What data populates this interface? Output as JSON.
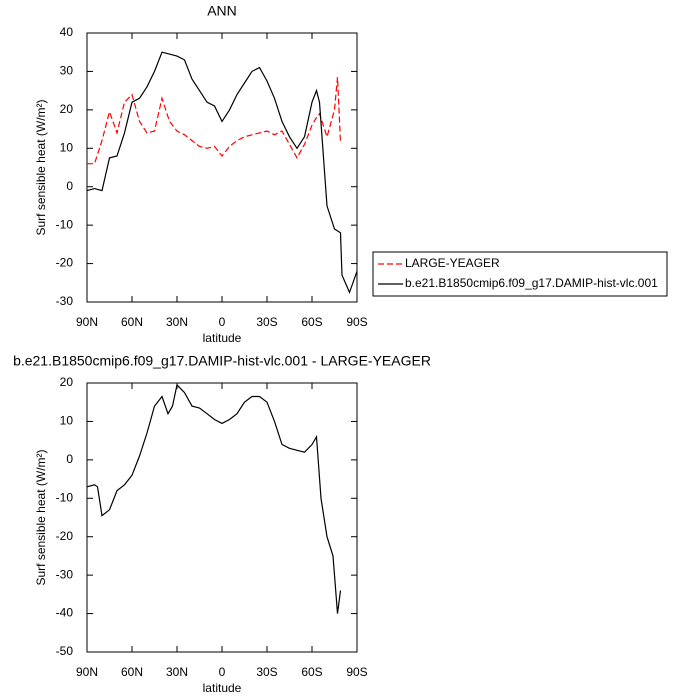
{
  "chart_data": [
    {
      "type": "line",
      "title": "ANN",
      "x_label": "latitude",
      "y_label": "Surf sensible heat (W/m²)",
      "x": [
        90,
        85,
        80,
        75,
        70,
        65,
        60,
        55,
        50,
        45,
        40,
        35,
        30,
        25,
        20,
        15,
        10,
        5,
        0,
        -5,
        -10,
        -15,
        -20,
        -25,
        -30,
        -35,
        -40,
        -45,
        -50,
        -55,
        -60,
        -63,
        -65,
        -70,
        -75,
        -77,
        -79,
        -80,
        -85,
        -90
      ],
      "xlim": [
        90,
        -90
      ],
      "xticks": [
        {
          "value": 90,
          "label": "90N"
        },
        {
          "value": 60,
          "label": "60N"
        },
        {
          "value": 30,
          "label": "30N"
        },
        0,
        {
          "value": -30,
          "label": "30S"
        },
        {
          "value": -60,
          "label": "60S"
        },
        {
          "value": -90,
          "label": "90S"
        }
      ],
      "ylim": [
        -30,
        40
      ],
      "yticks": [
        -30,
        -20,
        -10,
        0,
        10,
        20,
        30,
        40
      ],
      "series": [
        {
          "name": "LARGE-YEAGER",
          "color": "#ff0000",
          "dashed": true,
          "values": [
            6,
            6,
            12,
            19.5,
            14,
            22,
            24,
            17,
            14,
            14.5,
            23,
            17,
            14.5,
            13.5,
            12,
            10.5,
            10,
            10.5,
            8,
            10.5,
            12,
            13,
            13.5,
            14,
            14.5,
            13.5,
            14.5,
            11,
            7.5,
            11,
            16,
            18,
            19,
            13,
            20,
            28.5,
            11.5,
            null,
            null,
            null
          ]
        },
        {
          "name": "b.e21.B1850cmip6.f09_g17.DAMIP-hist-vlc.001",
          "color": "#000000",
          "dashed": false,
          "values": [
            -1,
            -0.5,
            -1,
            7.5,
            8,
            14,
            22,
            23,
            26,
            30,
            35,
            34.5,
            34,
            33,
            28,
            25,
            22,
            21,
            17,
            20,
            24,
            27,
            30,
            31,
            27.5,
            23,
            17,
            13,
            10,
            13,
            22,
            25,
            22,
            -5,
            -11,
            -11.5,
            -12,
            -23,
            -27.5,
            -22
          ]
        }
      ]
    },
    {
      "type": "line",
      "title": "b.e21.B1850cmip6.f09_g17.DAMIP-hist-vlc.001 - LARGE-YEAGER",
      "x_label": "latitude",
      "y_label": "Surf sensible heat (W/m²)",
      "x": [
        90,
        85,
        83,
        80,
        75,
        70,
        65,
        60,
        55,
        50,
        45,
        40,
        36,
        33,
        30,
        25,
        20,
        15,
        10,
        5,
        0,
        -5,
        -10,
        -15,
        -20,
        -25,
        -30,
        -35,
        -40,
        -45,
        -50,
        -55,
        -60,
        -63,
        -66,
        -70,
        -74,
        -77,
        -79
      ],
      "xlim": [
        90,
        -90
      ],
      "xticks": [
        {
          "value": 90,
          "label": "90N"
        },
        {
          "value": 60,
          "label": "60N"
        },
        {
          "value": 30,
          "label": "30N"
        },
        0,
        {
          "value": -30,
          "label": "30S"
        },
        {
          "value": -60,
          "label": "60S"
        },
        {
          "value": -90,
          "label": "90S"
        }
      ],
      "ylim": [
        -50,
        20
      ],
      "yticks": [
        -50,
        -40,
        -30,
        -20,
        -10,
        0,
        10,
        20
      ],
      "series": [
        {
          "color": "#000000",
          "dashed": false,
          "values": [
            -7,
            -6.5,
            -7,
            -14.5,
            -13,
            -8,
            -6.5,
            -4,
            1,
            7,
            14,
            16.5,
            12,
            14,
            19.5,
            17.5,
            14,
            13.5,
            12,
            10.5,
            9.5,
            10.5,
            12,
            15,
            16.5,
            16.5,
            15,
            10,
            4,
            3,
            2.5,
            2,
            4,
            6,
            -10,
            -20,
            -25,
            -40,
            -34
          ]
        }
      ]
    }
  ]
}
